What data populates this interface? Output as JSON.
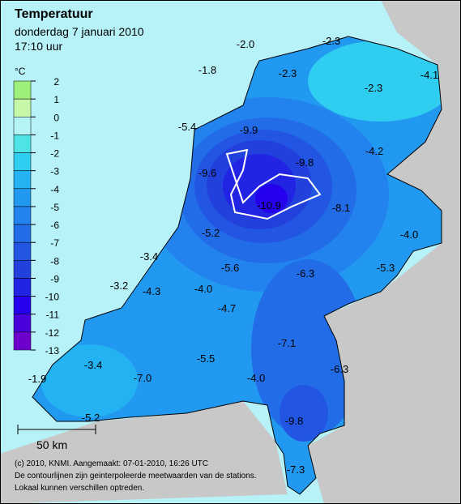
{
  "header": {
    "title": "Temperatuur",
    "date": "donderdag 7 januari 2010",
    "time": "17:10 uur"
  },
  "legend": {
    "unit": "°C",
    "ticks": [
      2,
      1,
      0,
      -1,
      -2,
      -3,
      -4,
      -5,
      -6,
      -7,
      -8,
      -9,
      -10,
      -11,
      -12,
      -13
    ],
    "colors": [
      "#9ef07a",
      "#c6f7a8",
      "#b4f4f4",
      "#4ee4e6",
      "#2fcdf0",
      "#23b3f2",
      "#2299f0",
      "#2282ee",
      "#226ce8",
      "#2256e2",
      "#2240dc",
      "#2224e4",
      "#2400ee",
      "#4a00dc",
      "#6e00cc"
    ]
  },
  "stations": [
    "-2.0",
    "-2.3",
    "-1.8",
    "-2.3",
    "-4.1",
    "-2.3",
    "-5.4",
    "-9.9",
    "-9.8",
    "-4.2",
    "-9.6",
    "-10.9",
    "-8.1",
    "-4.0",
    "-5.2",
    "-3.4",
    "-5.3",
    "-5.6",
    "-6.3",
    "-3.2",
    "-4.3",
    "-4.0",
    "-4.7",
    "-7.1",
    "-5.5",
    "-6.3",
    "-3.4",
    "-7.0",
    "-4.0",
    "-1.9",
    "-9.8",
    "-5.2",
    "-7.3"
  ],
  "scale": "50 km",
  "footer": [
    "(c) 2010, KNMI. Aangemaakt: 07-01-2010, 16:26 UTC",
    "De contourlijnen zijn geinterpoleerde meetwaarden van de stations.",
    "Lokaal kunnen verschillen optreden."
  ]
}
